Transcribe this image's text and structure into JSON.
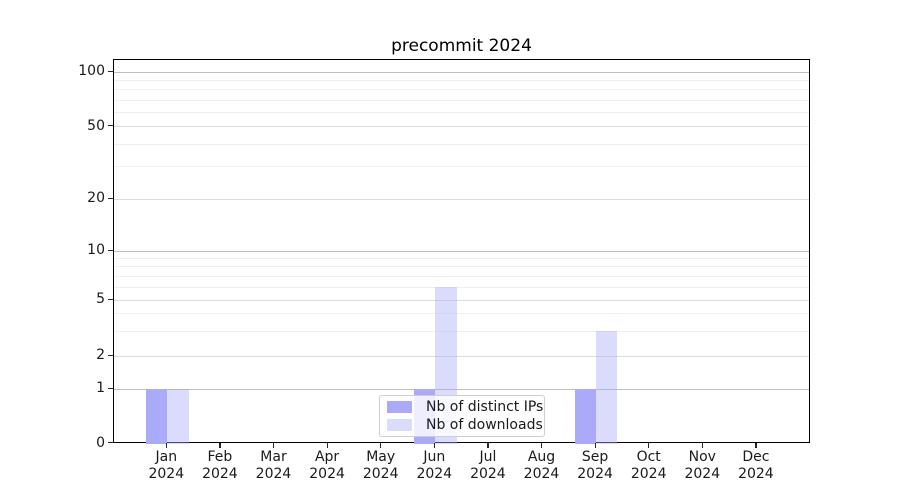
{
  "chart_data": {
    "type": "bar",
    "title": "precommit 2024",
    "categories": [
      "Jan 2024",
      "Feb 2024",
      "Mar 2024",
      "Apr 2024",
      "May 2024",
      "Jun 2024",
      "Jul 2024",
      "Aug 2024",
      "Sep 2024",
      "Oct 2024",
      "Nov 2024",
      "Dec 2024"
    ],
    "x_tick_labels": [
      {
        "month": "Jan",
        "year": "2024"
      },
      {
        "month": "Feb",
        "year": "2024"
      },
      {
        "month": "Mar",
        "year": "2024"
      },
      {
        "month": "Apr",
        "year": "2024"
      },
      {
        "month": "May",
        "year": "2024"
      },
      {
        "month": "Jun",
        "year": "2024"
      },
      {
        "month": "Jul",
        "year": "2024"
      },
      {
        "month": "Aug",
        "year": "2024"
      },
      {
        "month": "Sep",
        "year": "2024"
      },
      {
        "month": "Oct",
        "year": "2024"
      },
      {
        "month": "Nov",
        "year": "2024"
      },
      {
        "month": "Dec",
        "year": "2024"
      }
    ],
    "series": [
      {
        "key": "distinct-ips",
        "name": "Nb of distinct IPs",
        "color": "#aaaaf9",
        "alpha": 1.0,
        "values": [
          1,
          0,
          0,
          0,
          0,
          1,
          0,
          0,
          1,
          0,
          0,
          0
        ]
      },
      {
        "key": "downloads",
        "name": "Nb of downloads",
        "color": "#aaaaf9",
        "alpha": 0.42,
        "values": [
          1,
          0,
          0,
          0,
          0,
          6,
          0,
          0,
          3,
          0,
          0,
          0
        ]
      }
    ],
    "yscale": "symlog",
    "ylim": [
      0,
      100
    ],
    "yticks": [
      0,
      1,
      2,
      5,
      10,
      20,
      50,
      100
    ],
    "minor_yticks": [
      3,
      4,
      6,
      7,
      8,
      9,
      30,
      40,
      60,
      70,
      80,
      90
    ],
    "grid": "horizontal",
    "legend": {
      "position": "lower center",
      "entries": [
        "Nb of distinct IPs",
        "Nb of downloads"
      ]
    },
    "colors": {
      "grid_pow10": "#bdbdbd",
      "grid_major": "#dcdcdc",
      "grid_minor": "#efefef",
      "spine": "#000000",
      "tick_text": "#1a1a1a"
    }
  }
}
